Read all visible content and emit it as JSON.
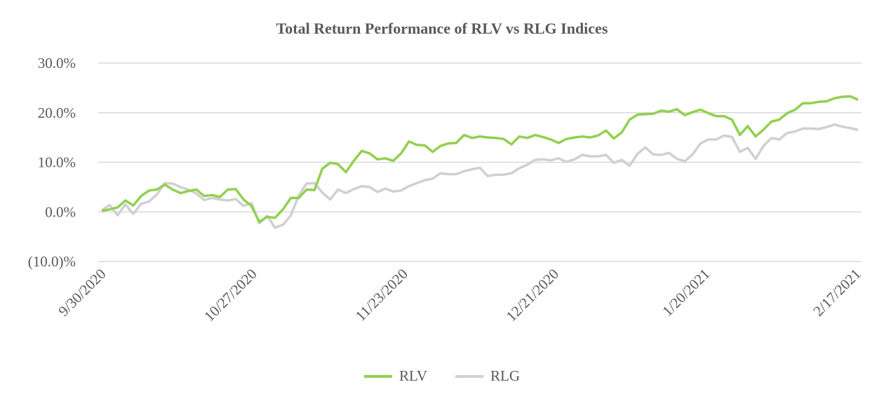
{
  "chart_data": {
    "type": "line",
    "title": "Total Return Performance of RLV vs RLG Indices",
    "xlabel": "",
    "ylabel": "",
    "ylim": [
      -10,
      30
    ],
    "y_ticks": [
      30,
      20,
      10,
      0,
      -10
    ],
    "y_tick_labels": [
      "30.0%",
      "20.0%",
      "10.0%",
      "0.0%",
      "(10.0)%"
    ],
    "x_tick_labels": [
      "9/30/2020",
      "10/27/2020",
      "11/23/2020",
      "12/21/2020",
      "1/20/2021",
      "2/17/2021"
    ],
    "grid": true,
    "legend_position": "bottom",
    "colors": {
      "RLV": "#92d050",
      "RLG": "#d0d0d0",
      "grid": "#d9d9d9"
    },
    "series": [
      {
        "name": "RLV",
        "values": [
          0.2,
          0.5,
          0.9,
          2.3,
          1.3,
          3.2,
          4.3,
          4.5,
          5.5,
          4.5,
          3.8,
          4.2,
          4.5,
          3.2,
          3.4,
          3.0,
          4.5,
          4.6,
          2.5,
          1.2,
          -2.0,
          -1.0,
          -1.2,
          0.5,
          2.8,
          2.8,
          4.5,
          4.4,
          8.7,
          9.9,
          9.6,
          8.0,
          10.3,
          12.3,
          11.8,
          10.6,
          10.8,
          10.3,
          11.8,
          14.2,
          13.5,
          13.4,
          12.1,
          13.3,
          13.8,
          13.9,
          15.5,
          14.9,
          15.2,
          15.0,
          14.9,
          14.7,
          13.6,
          15.2,
          14.9,
          15.5,
          15.1,
          14.6,
          13.9,
          14.7,
          15.0,
          15.2,
          15.0,
          15.4,
          16.4,
          14.8,
          16.0,
          18.6,
          19.6,
          19.7,
          19.8,
          20.4,
          20.2,
          20.7,
          19.5,
          20.1,
          20.6,
          19.9,
          19.3,
          19.3,
          18.6,
          15.5,
          17.3,
          15.2,
          16.6,
          18.2,
          18.6,
          19.9,
          20.6,
          21.9,
          21.9,
          22.2,
          22.3,
          22.9,
          23.2,
          23.3,
          22.6
        ]
      },
      {
        "name": "RLG",
        "values": [
          0.3,
          1.4,
          -0.7,
          1.5,
          -0.4,
          1.6,
          2.1,
          3.5,
          5.8,
          5.7,
          5.0,
          4.5,
          3.7,
          2.4,
          2.8,
          2.5,
          2.3,
          2.6,
          1.2,
          1.8,
          -2.3,
          -0.8,
          -3.2,
          -2.6,
          -0.7,
          3.3,
          5.7,
          5.8,
          3.9,
          2.5,
          4.5,
          3.8,
          4.6,
          5.2,
          5.0,
          4.0,
          4.7,
          4.1,
          4.3,
          5.2,
          5.8,
          6.4,
          6.7,
          7.8,
          7.6,
          7.6,
          8.2,
          8.6,
          8.9,
          7.2,
          7.5,
          7.5,
          7.8,
          8.8,
          9.5,
          10.5,
          10.6,
          10.4,
          10.8,
          10.1,
          10.6,
          11.5,
          11.2,
          11.2,
          11.5,
          9.9,
          10.5,
          9.3,
          11.7,
          13.0,
          11.6,
          11.5,
          11.9,
          10.7,
          10.2,
          11.6,
          13.8,
          14.6,
          14.6,
          15.4,
          15.1,
          12.1,
          12.9,
          10.7,
          13.3,
          14.9,
          14.6,
          15.9,
          16.2,
          16.8,
          16.8,
          16.7,
          17.1,
          17.6,
          17.2,
          16.9,
          16.5
        ]
      }
    ]
  }
}
